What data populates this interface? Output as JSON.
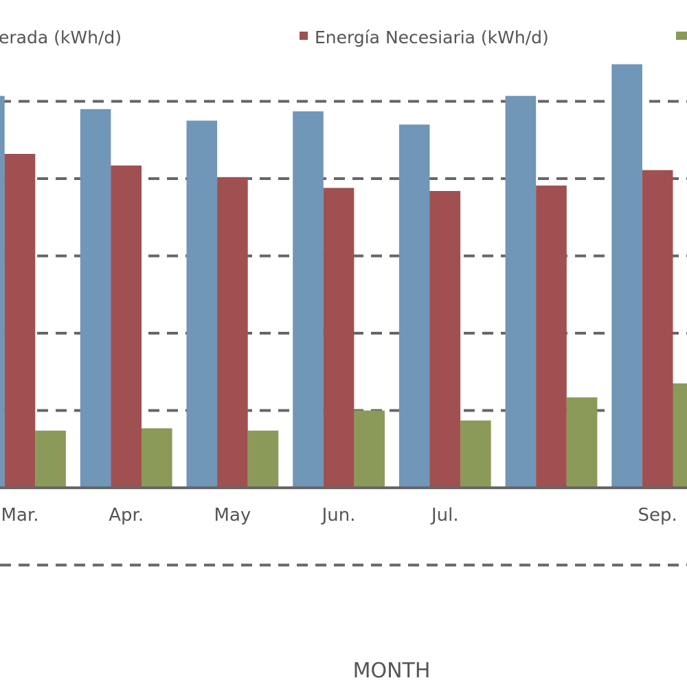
{
  "chart_data": {
    "type": "bar",
    "title": "",
    "xlabel": "MONTH",
    "ylabel": "",
    "categories": [
      "Mar.",
      "Apr.",
      "May",
      "Jun.",
      "Jul.",
      "",
      "Sep."
    ],
    "series": [
      {
        "name": "Energía Generada (kWh/d)",
        "legend_visible_text": "erada (kWh/d)",
        "color": "#7096b8",
        "values": [
          5.07,
          4.9,
          4.75,
          4.87,
          4.7,
          5.07,
          5.48
        ]
      },
      {
        "name": "Energía Necesiaria (kWh/d)",
        "legend_visible_text": "Energía Necesiaria (kWh/d)",
        "color": "#a05050",
        "values": [
          4.32,
          4.17,
          4.02,
          3.88,
          3.84,
          3.91,
          4.11
        ]
      },
      {
        "name": "",
        "legend_visible_text": "",
        "color": "#8b9a58",
        "values": [
          0.74,
          0.77,
          0.74,
          1.0,
          0.87,
          1.17,
          1.35
        ]
      }
    ],
    "ylim": [
      -1,
      5.5
    ],
    "gridlines": [
      -1,
      1,
      2,
      3,
      4,
      5
    ],
    "grid": true,
    "legend_position": "top"
  }
}
